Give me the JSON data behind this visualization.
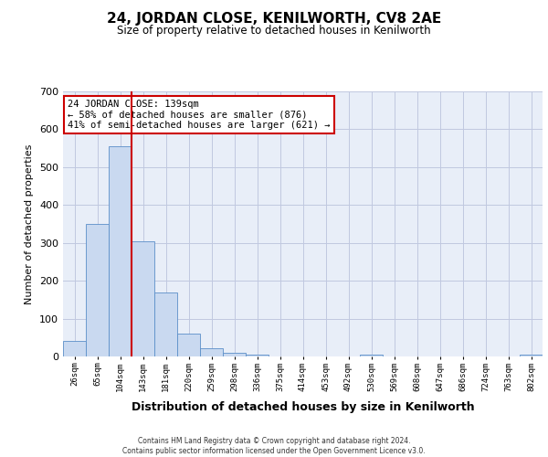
{
  "title": "24, JORDAN CLOSE, KENILWORTH, CV8 2AE",
  "subtitle": "Size of property relative to detached houses in Kenilworth",
  "xlabel": "Distribution of detached houses by size in Kenilworth",
  "ylabel": "Number of detached properties",
  "categories": [
    "26sqm",
    "65sqm",
    "104sqm",
    "143sqm",
    "181sqm",
    "220sqm",
    "259sqm",
    "298sqm",
    "336sqm",
    "375sqm",
    "414sqm",
    "453sqm",
    "492sqm",
    "530sqm",
    "569sqm",
    "608sqm",
    "647sqm",
    "686sqm",
    "724sqm",
    "763sqm",
    "802sqm"
  ],
  "values": [
    40,
    350,
    555,
    305,
    170,
    60,
    22,
    10,
    5,
    0,
    0,
    0,
    0,
    5,
    0,
    0,
    0,
    0,
    0,
    0,
    5
  ],
  "bar_color": "#c9d9f0",
  "bar_edge_color": "#5b8fc9",
  "bg_color": "#e8eef8",
  "grid_color": "#c0c8e0",
  "vline_color": "#cc0000",
  "annotation_text": "24 JORDAN CLOSE: 139sqm\n← 58% of detached houses are smaller (876)\n41% of semi-detached houses are larger (621) →",
  "annotation_box_color": "#ffffff",
  "annotation_edge_color": "#cc0000",
  "ylim": [
    0,
    700
  ],
  "yticks": [
    0,
    100,
    200,
    300,
    400,
    500,
    600,
    700
  ],
  "footer_line1": "Contains HM Land Registry data © Crown copyright and database right 2024.",
  "footer_line2": "Contains public sector information licensed under the Open Government Licence v3.0."
}
